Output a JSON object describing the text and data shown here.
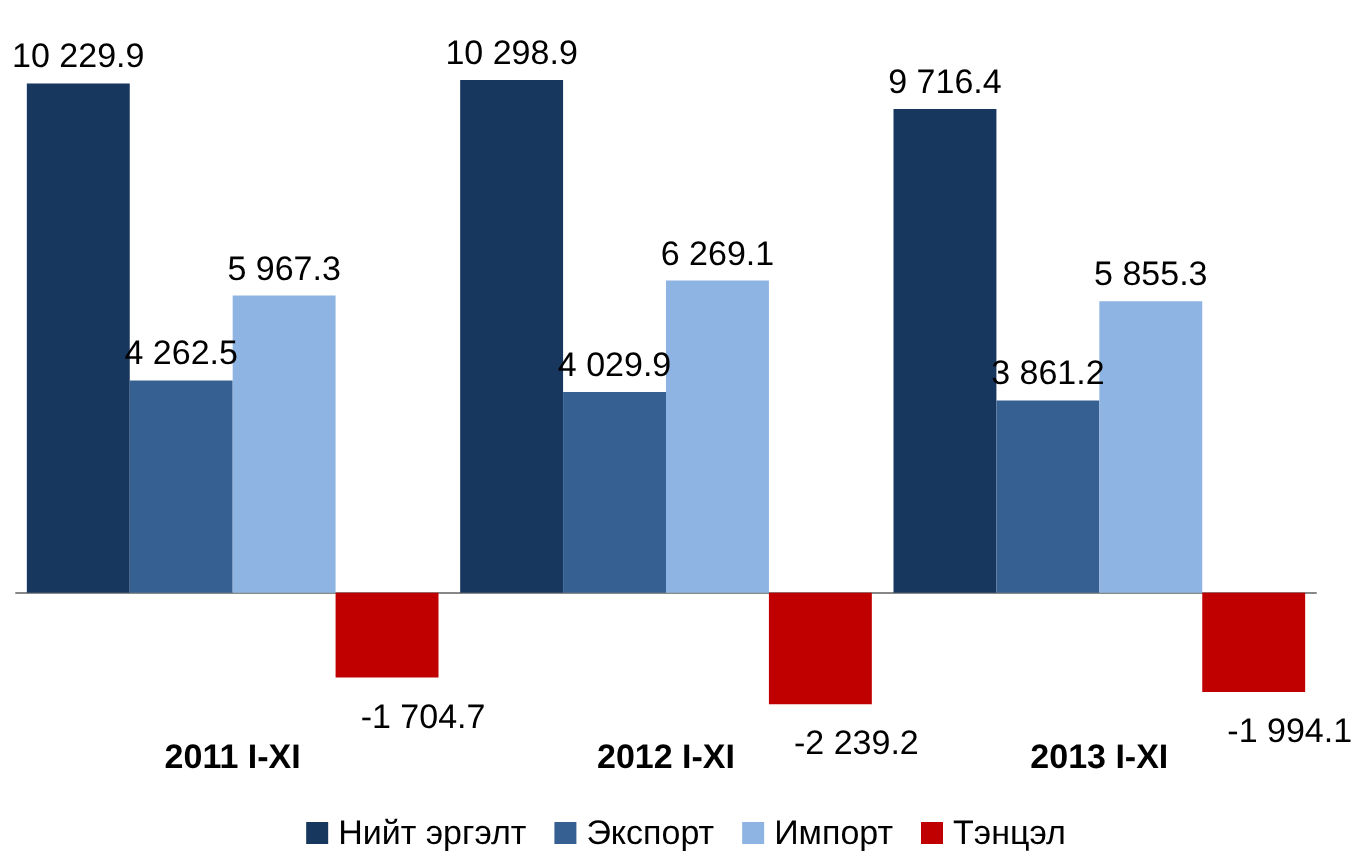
{
  "chart_data": {
    "type": "bar",
    "categories": [
      "2011 I-XI",
      "2012 I-XI",
      "2013 I-XI"
    ],
    "series": [
      {
        "name": "Нийт эргэлт",
        "color": "#17375e",
        "values": [
          10229.9,
          10298.9,
          9716.4
        ],
        "value_labels": [
          "10 229.9",
          "10 298.9",
          "9 716.4"
        ]
      },
      {
        "name": "Экспорт",
        "color": "#366092",
        "values": [
          4262.5,
          4029.9,
          3861.2
        ],
        "value_labels": [
          "4 262.5",
          "4 029.9",
          "3 861.2"
        ]
      },
      {
        "name": "Импорт",
        "color": "#8db4e2",
        "values": [
          5967.3,
          6269.1,
          5855.3
        ],
        "value_labels": [
          "5 967.3",
          "6 269.1",
          "5 855.3"
        ]
      },
      {
        "name": "Тэнцэл",
        "color": "#c00000",
        "values": [
          -1704.7,
          -2239.2,
          -1994.1
        ],
        "value_labels": [
          "-1 704.7",
          "-2 239.2",
          "-1 994.1"
        ]
      }
    ],
    "legend": "bottom"
  }
}
